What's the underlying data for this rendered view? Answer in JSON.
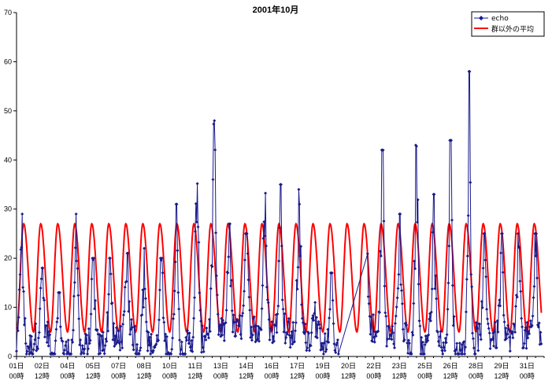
{
  "chart_data": {
    "type": "line",
    "title": "2001年10月",
    "ylim": [
      0,
      70
    ],
    "yticks": [
      0,
      10,
      20,
      30,
      40,
      50,
      60,
      70
    ],
    "xlim": [
      0,
      31
    ],
    "grid": false,
    "legend_position": "top-right",
    "x_tick_labels": [
      {
        "day": "01日",
        "time": "00時"
      },
      {
        "day": "02日",
        "time": "12時"
      },
      {
        "day": "04日",
        "time": "00時"
      },
      {
        "day": "05日",
        "time": "12時"
      },
      {
        "day": "07日",
        "time": "00時"
      },
      {
        "day": "08日",
        "time": "12時"
      },
      {
        "day": "10日",
        "time": "00時"
      },
      {
        "day": "11日",
        "time": "12時"
      },
      {
        "day": "13日",
        "time": "00時"
      },
      {
        "day": "14日",
        "time": "12時"
      },
      {
        "day": "16日",
        "time": "00時"
      },
      {
        "day": "17日",
        "time": "12時"
      },
      {
        "day": "19日",
        "time": "00時"
      },
      {
        "day": "20日",
        "time": "12時"
      },
      {
        "day": "22日",
        "time": "00時"
      },
      {
        "day": "23日",
        "time": "12時"
      },
      {
        "day": "25日",
        "time": "00時"
      },
      {
        "day": "26日",
        "time": "12時"
      },
      {
        "day": "28日",
        "time": "00時"
      },
      {
        "day": "29日",
        "time": "12時"
      },
      {
        "day": "31日",
        "time": "00時"
      }
    ],
    "series": [
      {
        "name": "echo",
        "color": "#1a1a8c",
        "marker": "diamond",
        "daily_peaks": [
          29,
          18,
          13,
          29,
          20,
          20,
          21,
          22,
          20,
          31,
          40,
          48,
          27,
          25,
          38,
          35,
          34,
          11,
          17,
          43,
          42,
          42,
          29,
          43,
          33,
          44,
          58,
          25
        ],
        "peak_day_offset": [
          0.3,
          0.5,
          0.5,
          0.5,
          0.5,
          0.5,
          0.5,
          0.5,
          0.5,
          0.4,
          0.6,
          0.6,
          0.5,
          0.5,
          0.6,
          0.5,
          0.6,
          0.5,
          0.5,
          0.5,
          0.5,
          0.5,
          0.5,
          0.5,
          0.5,
          0.5,
          0.6,
          0.5
        ],
        "daily_troughs": [
          2,
          4,
          1,
          1,
          2,
          3,
          4,
          2,
          2,
          1,
          3,
          5,
          5,
          6,
          5,
          5,
          4,
          4,
          2,
          3,
          6,
          4,
          4,
          1,
          4,
          1,
          1,
          4
        ],
        "gap": [
          18.95,
          20.6
        ]
      },
      {
        "name": "群以外の平均",
        "color": "#ff0000",
        "period_days": 1,
        "max": 27,
        "min": 5,
        "peak_phase": 0.42
      }
    ]
  }
}
